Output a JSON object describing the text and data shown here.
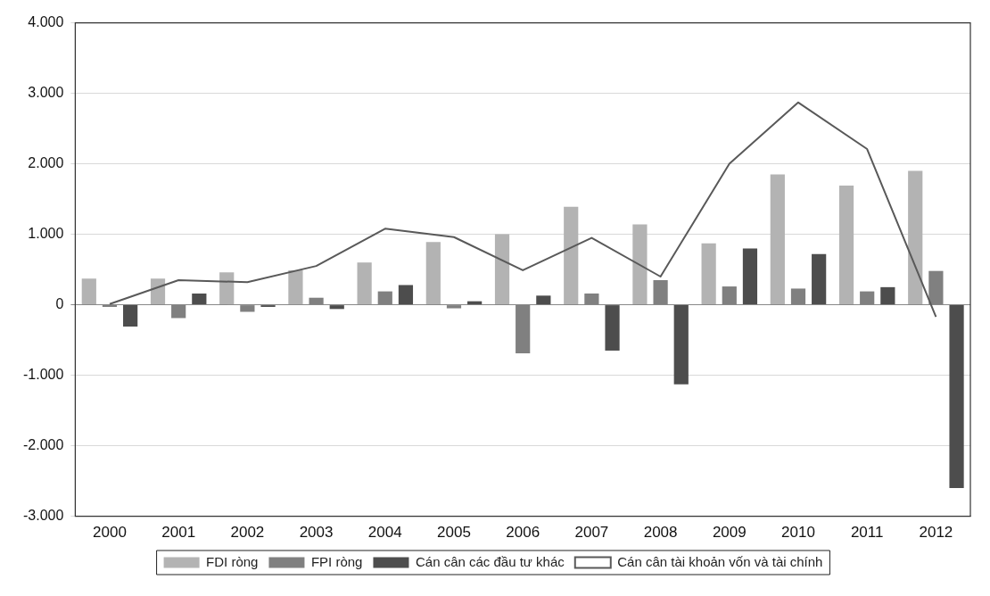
{
  "chart_data": {
    "type": "bar",
    "categories": [
      "2000",
      "2001",
      "2002",
      "2003",
      "2004",
      "2005",
      "2006",
      "2007",
      "2008",
      "2009",
      "2010",
      "2011",
      "2012"
    ],
    "series": [
      {
        "name": "FDI ròng",
        "color": "#b3b3b3",
        "values": [
          370,
          370,
          460,
          490,
          600,
          890,
          1000,
          1390,
          1140,
          870,
          1850,
          1690,
          1900
        ]
      },
      {
        "name": "FPI ròng",
        "color": "#808080",
        "values": [
          -30,
          -190,
          -100,
          100,
          190,
          -50,
          -690,
          160,
          350,
          260,
          230,
          190,
          480
        ]
      },
      {
        "name": "Cán cân các đầu tư khác",
        "color": "#4d4d4d",
        "values": [
          -310,
          160,
          -30,
          -60,
          280,
          50,
          130,
          -650,
          -1130,
          800,
          720,
          250,
          -2600
        ]
      },
      {
        "name": "Cán cân tài khoản vốn và tài chính",
        "type": "line",
        "color": "#595959",
        "values": [
          10,
          350,
          320,
          550,
          1080,
          960,
          490,
          950,
          400,
          2000,
          2870,
          2210,
          -170
        ]
      }
    ],
    "ylim": [
      -3000,
      4000
    ],
    "yticks": [
      {
        "value": -3000,
        "label": "-3.000"
      },
      {
        "value": -2000,
        "label": "-2.000"
      },
      {
        "value": -1000,
        "label": "-1.000"
      },
      0,
      {
        "value": 1000,
        "label": "1.000"
      },
      {
        "value": 2000,
        "label": "2.000"
      },
      {
        "value": 3000,
        "label": "3.000"
      },
      {
        "value": 4000,
        "label": "4.000"
      }
    ],
    "grid": "y",
    "legend": "bottom",
    "marker": "none"
  }
}
